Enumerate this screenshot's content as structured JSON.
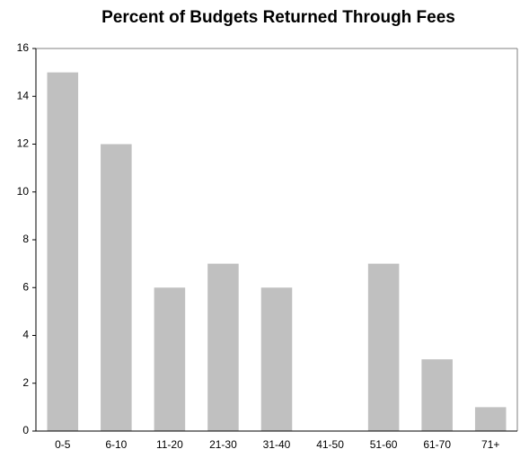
{
  "chart_data": {
    "type": "bar",
    "title": "Percent of Budgets Returned Through Fees",
    "categories": [
      "0-5",
      "6-10",
      "11-20",
      "21-30",
      "31-40",
      "41-50",
      "51-60",
      "61-70",
      "71+"
    ],
    "values": [
      15,
      12,
      6,
      7,
      6,
      0,
      7,
      3,
      1
    ],
    "color": "#c0c0c0",
    "ylim": [
      0,
      16
    ],
    "yticks": [
      0,
      2,
      4,
      6,
      8,
      10,
      12,
      14,
      16
    ],
    "grid": false
  }
}
